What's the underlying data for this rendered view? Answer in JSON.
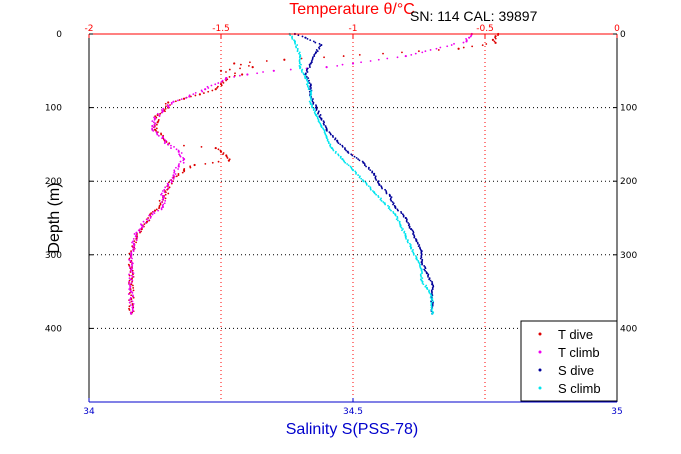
{
  "chart_data": {
    "type": "scatter",
    "title": "Temperature θ/°C",
    "header_note": "SN: 114  CAL: 39897",
    "top_axis": {
      "label": "Temperature θ/°C",
      "range": [
        -2,
        0
      ],
      "ticks": [
        -2,
        -1.5,
        -1,
        -0.5,
        0
      ],
      "tick_labels": [
        "-2",
        "-1.5",
        "-1",
        "-0.5",
        "0"
      ],
      "grid_at": [
        -1.5,
        -1,
        -0.5
      ],
      "color": "#ff0000"
    },
    "bottom_axis": {
      "label": "Salinity S(PSS-78)",
      "range": [
        34,
        35
      ],
      "ticks": [
        34,
        34.5,
        35
      ],
      "tick_labels": [
        "34",
        "34.5",
        "35"
      ],
      "color": "#0000cc"
    },
    "y_axis": {
      "label": "Depth (m)",
      "range": [
        0,
        500
      ],
      "reversed": true,
      "ticks": [
        0,
        100,
        200,
        300,
        400
      ],
      "tick_labels": [
        "0",
        "100",
        "200",
        "300",
        "400"
      ],
      "grid_at": [
        100,
        200,
        300,
        400
      ]
    },
    "grid": true,
    "legend_position": "bottom-right",
    "series": [
      {
        "name": "T dive",
        "axis": "top",
        "color": "#dd0000",
        "points": [
          [
            -0.45,
            0
          ],
          [
            -0.46,
            3
          ],
          [
            -0.47,
            8
          ],
          [
            -0.46,
            12
          ],
          [
            -0.6,
            20
          ],
          [
            -1.26,
            35
          ],
          [
            -1.45,
            40
          ],
          [
            -1.38,
            45
          ],
          [
            -1.5,
            50
          ],
          [
            -1.42,
            55
          ],
          [
            -1.48,
            60
          ],
          [
            -1.5,
            68
          ],
          [
            -1.52,
            75
          ],
          [
            -1.58,
            82
          ],
          [
            -1.64,
            88
          ],
          [
            -1.7,
            93
          ],
          [
            -1.7,
            100
          ],
          [
            -1.74,
            110
          ],
          [
            -1.74,
            120
          ],
          [
            -1.75,
            130
          ],
          [
            -1.72,
            140
          ],
          [
            -1.7,
            150
          ],
          [
            -1.52,
            155
          ],
          [
            -1.5,
            160
          ],
          [
            -1.48,
            165
          ],
          [
            -1.47,
            172
          ],
          [
            -1.6,
            178
          ],
          [
            -1.64,
            185
          ],
          [
            -1.68,
            195
          ],
          [
            -1.7,
            210
          ],
          [
            -1.72,
            225
          ],
          [
            -1.75,
            240
          ],
          [
            -1.78,
            255
          ],
          [
            -1.8,
            265
          ],
          [
            -1.82,
            278
          ],
          [
            -1.83,
            290
          ],
          [
            -1.84,
            300
          ],
          [
            -1.84,
            320
          ],
          [
            -1.84,
            340
          ],
          [
            -1.84,
            360
          ],
          [
            -1.84,
            380
          ]
        ]
      },
      {
        "name": "T climb",
        "axis": "top",
        "color": "#ee00ee",
        "points": [
          [
            -0.55,
            0
          ],
          [
            -0.56,
            5
          ],
          [
            -0.57,
            10
          ],
          [
            -0.8,
            30
          ],
          [
            -1.0,
            40
          ],
          [
            -1.1,
            45
          ],
          [
            -1.3,
            50
          ],
          [
            -1.4,
            55
          ],
          [
            -1.48,
            60
          ],
          [
            -1.56,
            75
          ],
          [
            -1.62,
            85
          ],
          [
            -1.68,
            92
          ],
          [
            -1.7,
            98
          ],
          [
            -1.72,
            105
          ],
          [
            -1.75,
            115
          ],
          [
            -1.76,
            125
          ],
          [
            -1.76,
            130
          ],
          [
            -1.72,
            140
          ],
          [
            -1.7,
            150
          ],
          [
            -1.66,
            160
          ],
          [
            -1.64,
            170
          ],
          [
            -1.66,
            180
          ],
          [
            -1.68,
            192
          ],
          [
            -1.7,
            205
          ],
          [
            -1.72,
            220
          ],
          [
            -1.72,
            235
          ],
          [
            -1.76,
            245
          ],
          [
            -1.8,
            260
          ],
          [
            -1.82,
            270
          ],
          [
            -1.83,
            285
          ],
          [
            -1.84,
            300
          ],
          [
            -1.84,
            320
          ],
          [
            -1.84,
            350
          ],
          [
            -1.84,
            380
          ]
        ]
      },
      {
        "name": "S dive",
        "axis": "bottom",
        "color": "#000099",
        "points": [
          [
            34.39,
            0
          ],
          [
            34.41,
            5
          ],
          [
            34.44,
            15
          ],
          [
            34.43,
            25
          ],
          [
            34.42,
            40
          ],
          [
            34.41,
            55
          ],
          [
            34.42,
            70
          ],
          [
            34.42,
            85
          ],
          [
            34.43,
            100
          ],
          [
            34.44,
            115
          ],
          [
            34.45,
            130
          ],
          [
            34.47,
            145
          ],
          [
            34.49,
            160
          ],
          [
            34.52,
            175
          ],
          [
            34.54,
            190
          ],
          [
            34.55,
            205
          ],
          [
            34.57,
            220
          ],
          [
            34.58,
            235
          ],
          [
            34.6,
            250
          ],
          [
            34.61,
            265
          ],
          [
            34.62,
            280
          ],
          [
            34.63,
            295
          ],
          [
            34.63,
            310
          ],
          [
            34.64,
            325
          ],
          [
            34.65,
            340
          ],
          [
            34.65,
            355
          ],
          [
            34.65,
            370
          ],
          [
            34.65,
            380
          ]
        ]
      },
      {
        "name": "S climb",
        "axis": "bottom",
        "color": "#00e5ee",
        "points": [
          [
            34.38,
            0
          ],
          [
            34.39,
            10
          ],
          [
            34.4,
            30
          ],
          [
            34.4,
            45
          ],
          [
            34.41,
            60
          ],
          [
            34.42,
            80
          ],
          [
            34.42,
            95
          ],
          [
            34.43,
            110
          ],
          [
            34.44,
            125
          ],
          [
            34.45,
            140
          ],
          [
            34.46,
            155
          ],
          [
            34.48,
            170
          ],
          [
            34.5,
            185
          ],
          [
            34.52,
            200
          ],
          [
            34.54,
            215
          ],
          [
            34.56,
            230
          ],
          [
            34.58,
            245
          ],
          [
            34.59,
            260
          ],
          [
            34.6,
            275
          ],
          [
            34.61,
            290
          ],
          [
            34.62,
            305
          ],
          [
            34.63,
            320
          ],
          [
            34.63,
            335
          ],
          [
            34.64,
            345
          ],
          [
            34.65,
            360
          ],
          [
            34.65,
            380
          ]
        ]
      }
    ],
    "legend": [
      {
        "label": "T dive",
        "color": "#dd0000"
      },
      {
        "label": "T climb",
        "color": "#ee00ee"
      },
      {
        "label": "S dive",
        "color": "#000099"
      },
      {
        "label": "S climb",
        "color": "#00e5ee"
      }
    ]
  }
}
